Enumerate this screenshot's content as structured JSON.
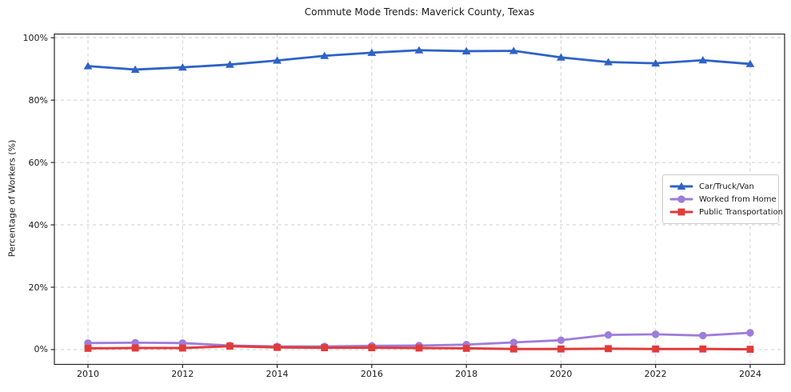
{
  "figure": {
    "title": "Commute Mode Trends: Maverick County, Texas",
    "y_axis_title": "Percentage of Workers (%)"
  },
  "axes": {
    "x_tick_labels": [
      "2010",
      "2012",
      "2014",
      "2016",
      "2018",
      "2020",
      "2022",
      "2024"
    ],
    "y_tick_labels": [
      "0%",
      "20%",
      "40%",
      "60%",
      "80%",
      "100%"
    ]
  },
  "colors": {
    "car": "#2e62c6",
    "home": "#9e7cdb",
    "transit": "#e23b3b",
    "grid": "#cfcfcf",
    "spine": "#262626"
  },
  "chart_data": {
    "type": "line",
    "title": "Commute Mode Trends: Maverick County, Texas",
    "xlabel": "",
    "ylabel": "Percentage of Workers (%)",
    "x": [
      2010,
      2011,
      2012,
      2013,
      2014,
      2015,
      2016,
      2017,
      2018,
      2019,
      2020,
      2021,
      2022,
      2023,
      2024
    ],
    "x_ticks": [
      2010,
      2012,
      2014,
      2016,
      2018,
      2020,
      2022,
      2024
    ],
    "y_ticks": [
      0,
      20,
      40,
      60,
      80,
      100
    ],
    "ylim": [
      -4.75,
      101.2
    ],
    "xlim": [
      2009.3,
      2024.73
    ],
    "grid": true,
    "grid_style": "dashed",
    "legend_position": "center-right",
    "series": [
      {
        "name": "Car/Truck/Van",
        "color": "#2e62c6",
        "marker": "triangle",
        "values": [
          90.9,
          89.8,
          90.5,
          91.4,
          92.7,
          94.2,
          95.2,
          96.0,
          95.7,
          95.8,
          93.7,
          92.2,
          91.8,
          92.8,
          91.6
        ]
      },
      {
        "name": "Worked from Home",
        "color": "#9e7cdb",
        "marker": "circle",
        "values": [
          2.1,
          2.2,
          2.1,
          1.3,
          1.0,
          1.0,
          1.2,
          1.3,
          1.6,
          2.3,
          3.0,
          4.7,
          4.9,
          4.5,
          5.4
        ]
      },
      {
        "name": "Public Transportation",
        "color": "#e23b3b",
        "marker": "square",
        "values": [
          0.4,
          0.5,
          0.5,
          1.1,
          0.7,
          0.6,
          0.6,
          0.5,
          0.4,
          0.2,
          0.2,
          0.3,
          0.2,
          0.2,
          0.1
        ]
      }
    ]
  }
}
